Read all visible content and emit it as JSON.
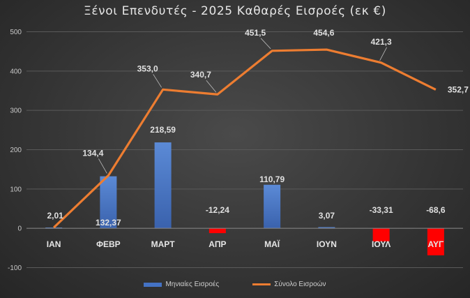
{
  "chart_data": {
    "type": "bar+line",
    "title": "Ξένοι Επενδυτές - 2025 Καθαρές Εισροές (εκ €)",
    "categories": [
      "ΙΑΝ",
      "ΦΕΒΡ",
      "ΜΑΡΤ",
      "ΑΠΡ",
      "ΜΑΪ",
      "ΙΟΥΝ",
      "ΙΟΥΛ",
      "ΑΥΓ"
    ],
    "series": [
      {
        "name": "Μηνιαίες Εισροές",
        "type": "bar",
        "values": [
          2.01,
          132.37,
          218.59,
          -12.24,
          110.79,
          3.07,
          -33.31,
          -68.6
        ],
        "labels": [
          "2,01",
          "132,37",
          "218,59",
          "-12,24",
          "110,79",
          "3,07",
          "-33,31",
          "-68,6"
        ]
      },
      {
        "name": "Σύνολο Εισροών",
        "type": "line",
        "values": [
          2.01,
          134.4,
          353.0,
          340.7,
          451.5,
          454.6,
          421.3,
          352.7
        ],
        "labels": [
          "",
          "134,4",
          "353,0",
          "340,7",
          "451,5",
          "454,6",
          "421,3",
          "352,7"
        ]
      }
    ],
    "yticks": [
      "-100",
      "0",
      "100",
      "200",
      "300",
      "400",
      "500"
    ],
    "ylim": [
      -100,
      500
    ],
    "grid": true,
    "legend": "bottom",
    "colors": {
      "positive_bar": "#4472c4",
      "negative_bar": "#ff0000",
      "line": "#ed7d31"
    }
  }
}
